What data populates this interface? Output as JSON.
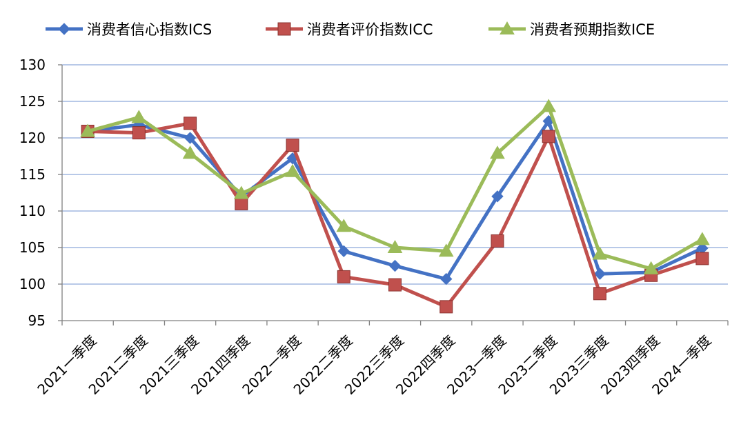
{
  "chart_data": {
    "type": "line",
    "title": "",
    "xlabel": "",
    "ylabel": "",
    "categories": [
      "2021一季度",
      "2021二季度",
      "2021三季度",
      "2021四季度",
      "2022一季度",
      "2022二季度",
      "2022三季度",
      "2022四季度",
      "2023一季度",
      "2023二季度",
      "2023三季度",
      "2023四季度",
      "2024一季度"
    ],
    "ylim": [
      95,
      130
    ],
    "yticks": [
      95,
      100,
      105,
      110,
      115,
      120,
      125,
      130
    ],
    "grid": true,
    "legend_position": "top",
    "series": [
      {
        "name": "消费者信心指数ICS",
        "color": "#4472C4",
        "marker": "diamond",
        "values": [
          120.9,
          121.8,
          120.0,
          112.0,
          117.2,
          104.5,
          102.5,
          100.7,
          112.0,
          122.3,
          101.4,
          101.6,
          104.9
        ]
      },
      {
        "name": "消费者评价指数ICC",
        "color": "#C0504D",
        "marker": "square",
        "values": [
          120.9,
          120.7,
          122.0,
          111.0,
          119.0,
          101.0,
          99.9,
          96.9,
          105.9,
          120.2,
          98.7,
          101.2,
          103.5
        ]
      },
      {
        "name": "消费者预期指数ICE",
        "color": "#9BBB59",
        "marker": "triangle",
        "values": [
          120.9,
          122.8,
          117.9,
          112.4,
          115.4,
          107.9,
          105.0,
          104.5,
          117.9,
          124.3,
          104.1,
          102.1,
          106.1
        ]
      }
    ]
  }
}
